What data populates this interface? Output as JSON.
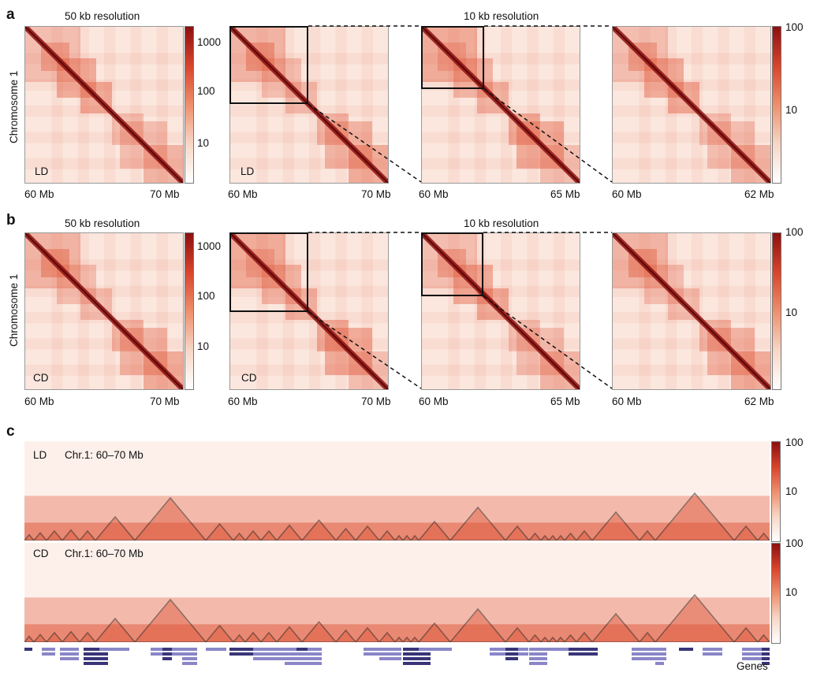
{
  "panels": {
    "a": {
      "letter": "a",
      "sample": "LD"
    },
    "b": {
      "letter": "b",
      "sample": "CD"
    },
    "c": {
      "letter": "c"
    }
  },
  "headers": {
    "res50": "50 kb resolution",
    "res10": "10 kb resolution"
  },
  "ylabel": "Chromosome 1",
  "ticks": {
    "m1": [
      "60 Mb",
      "70 Mb"
    ],
    "m2": [
      "60 Mb",
      "70 Mb"
    ],
    "m3": [
      "60 Mb",
      "65 Mb"
    ],
    "m4": [
      "60 Mb",
      "62 Mb"
    ]
  },
  "colorbar_50kb": [
    "1000",
    "100",
    "10"
  ],
  "colorbar_10kb": [
    "100",
    "10"
  ],
  "track_c": {
    "rows": [
      {
        "sample": "LD",
        "region": "Chr.1: 60–70 Mb"
      },
      {
        "sample": "CD",
        "region": "Chr.1: 60–70 Mb"
      }
    ],
    "colorbar": [
      "100",
      "10"
    ],
    "genes_label": "Genes"
  },
  "colors": {
    "heat_high": "#8c1010",
    "heat_mid": "#e0573a",
    "heat_low": "#fbe7de",
    "box": "#111111",
    "genes": "#8a86c8",
    "genes_dark": "#3a3578"
  }
}
